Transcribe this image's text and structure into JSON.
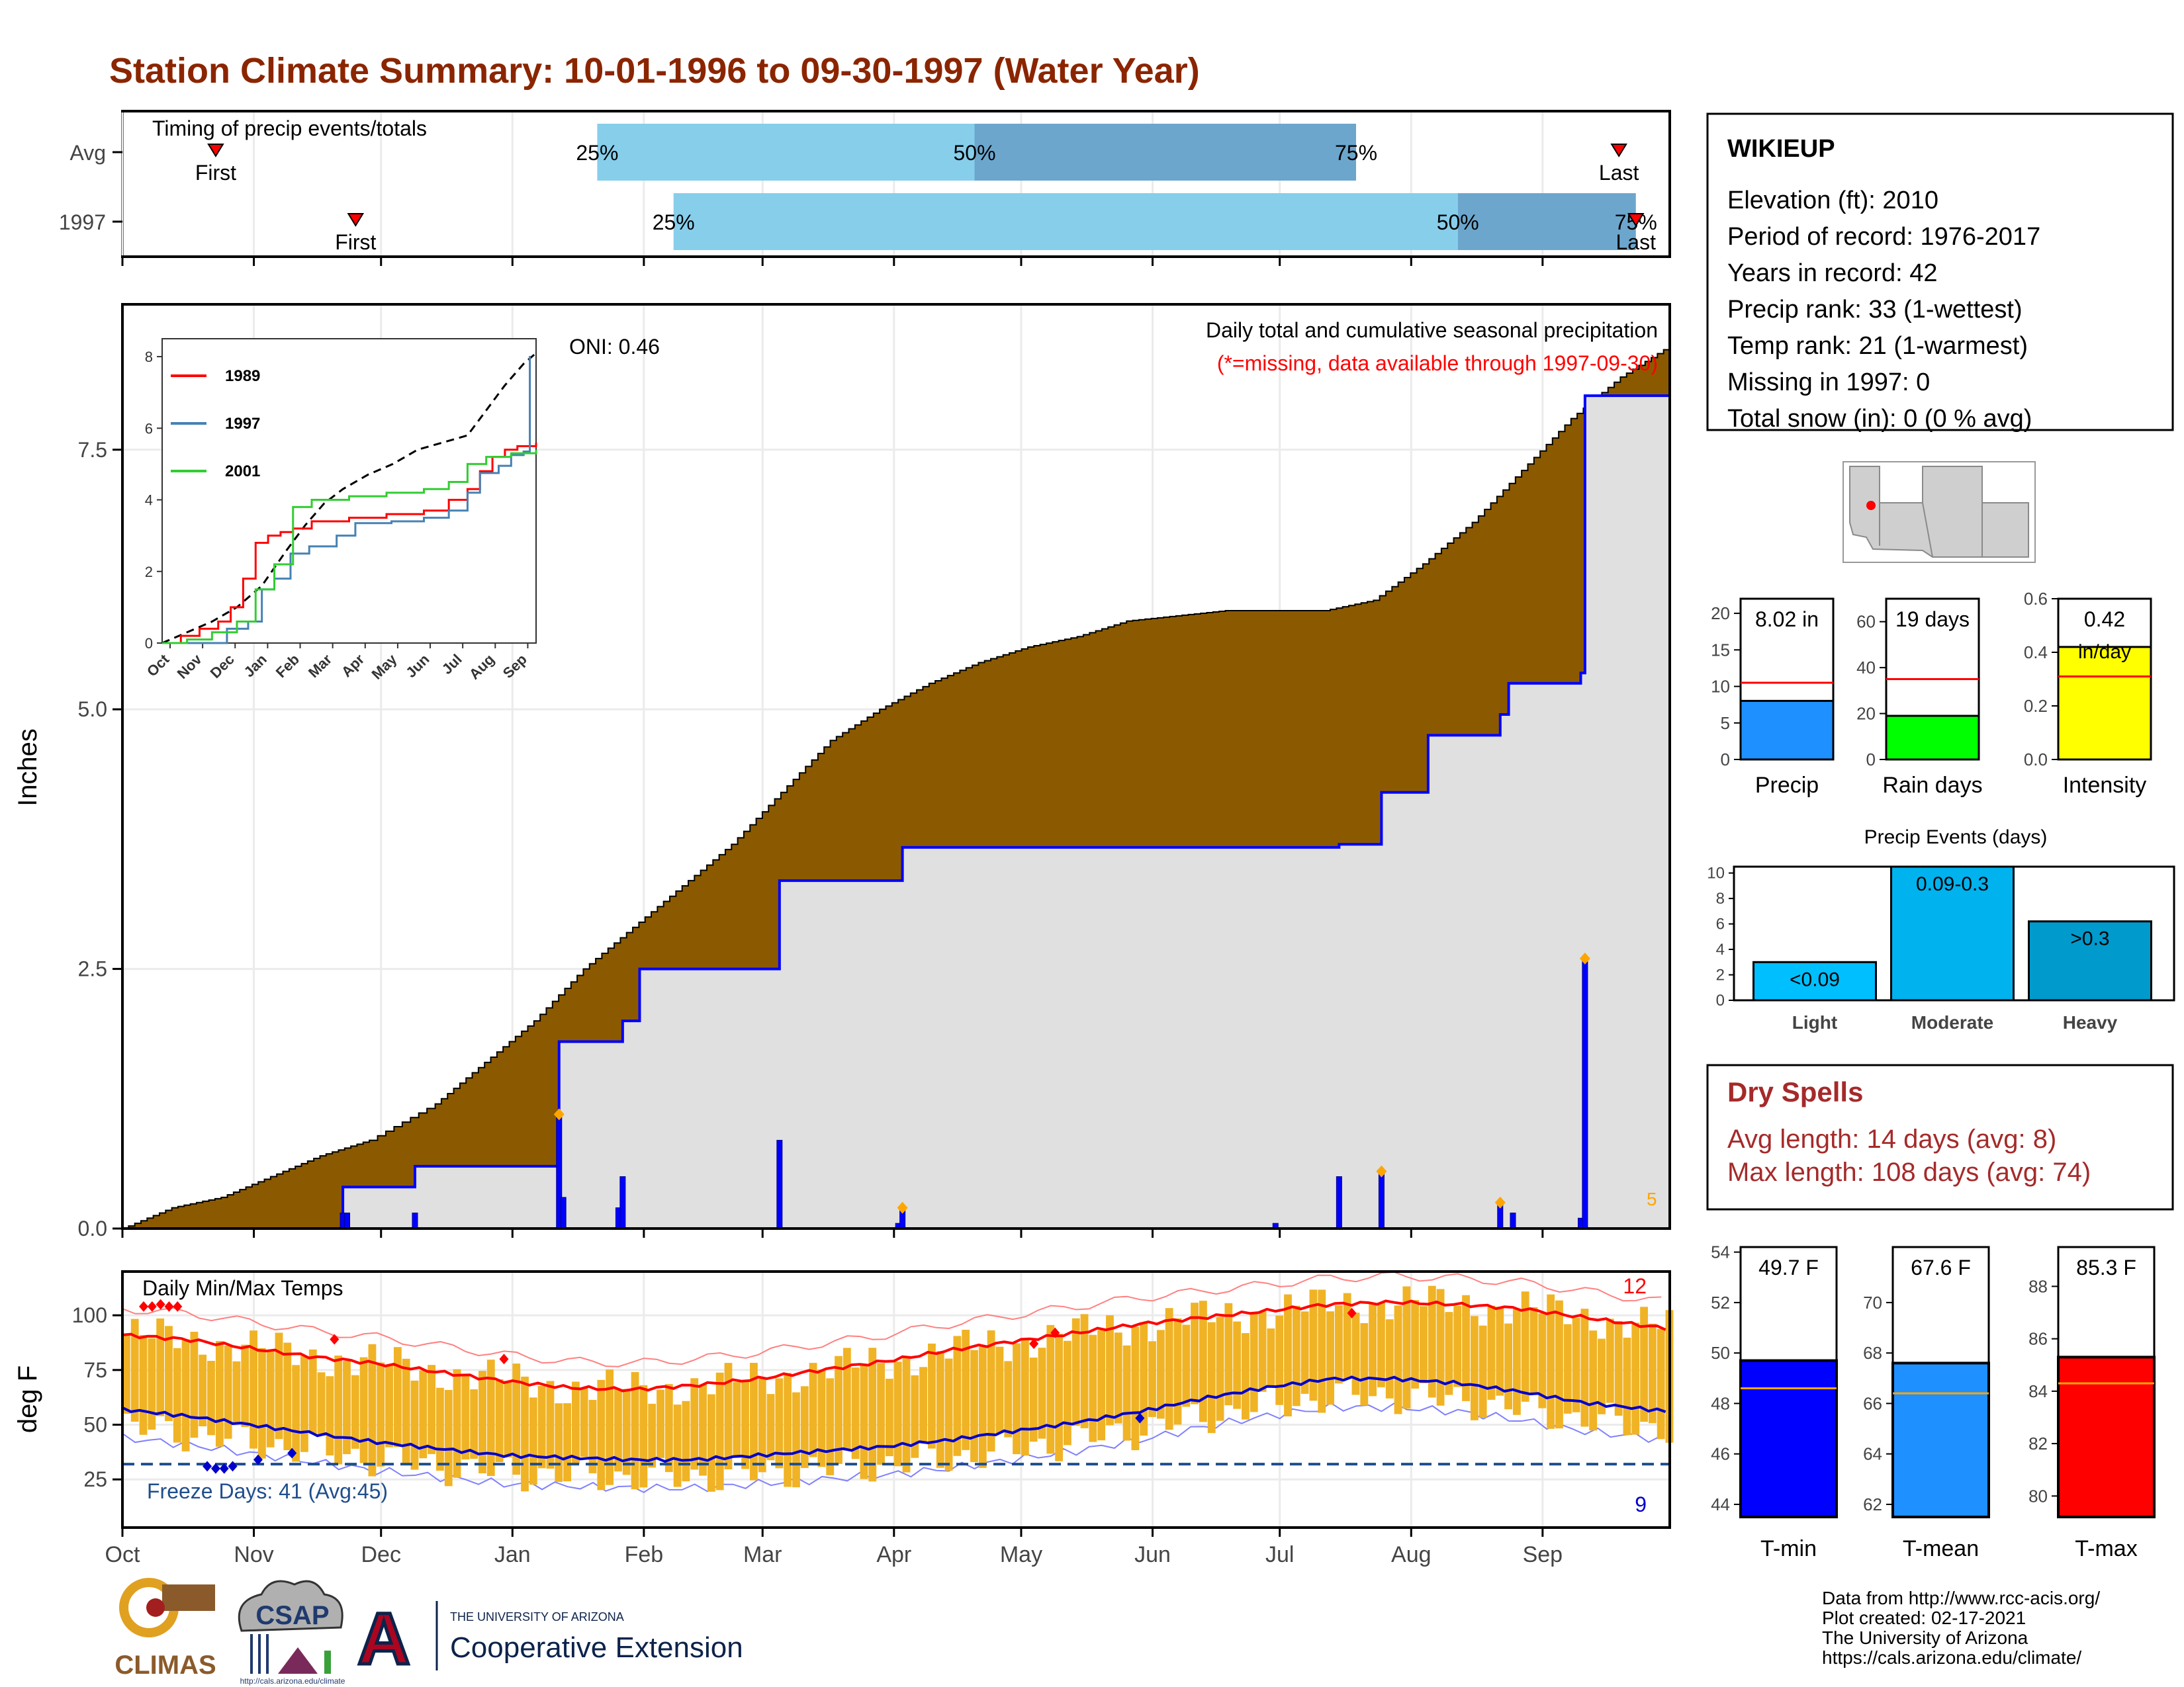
{
  "title": "Station Climate Summary: 10-01-1996 to 09-30-1997 (Water Year)",
  "months": [
    "Oct",
    "Nov",
    "Dec",
    "Jan",
    "Feb",
    "Mar",
    "Apr",
    "May",
    "Jun",
    "Jul",
    "Aug",
    "Sep"
  ],
  "colors": {
    "title": "#8b2500",
    "brown": "#8b5a00",
    "gray_area": "#e0e0e0",
    "blue": "#0000ff",
    "light_blue": "#87ceeb",
    "mid_blue": "#6ca6cd",
    "temp_band": "#f0b325",
    "red": "#ff0000",
    "orange": "#ffa500",
    "dry_red": "#a52a2a"
  },
  "timing": {
    "label": "Timing of precip events/totals",
    "rows": [
      {
        "name": "Avg",
        "first_day": 22,
        "p25_day": 112,
        "p50_day": 201,
        "p75_day": 291,
        "last_day": 353,
        "first_label": "First",
        "last_label": "Last",
        "p25_label": "25%",
        "p50_label": "50%",
        "p75_label": "75%"
      },
      {
        "name": "1997",
        "first_day": 55,
        "p25_day": 130,
        "p50_day": 315,
        "p75_day": 357,
        "last_day": 357,
        "first_label": "First",
        "last_label": "Last",
        "p25_label": "25%",
        "p50_label": "50%",
        "p75_label": "75%"
      }
    ]
  },
  "chart_data": [
    {
      "type": "area",
      "id": "main",
      "title": "Daily total and cumulative seasonal precipitation",
      "subtitle": "(*=missing, data available through 1997-09-30)",
      "oni_label": "ONI: 0.46",
      "ylabel": "Inches",
      "ylim": [
        0,
        8.9
      ],
      "yticks": [
        0,
        2.5,
        5.0,
        7.5
      ],
      "ytick_labels": [
        "0.0",
        "2.5",
        "5.0",
        "7.5"
      ],
      "corner_label": "5",
      "avg_cumulative": [
        [
          0,
          0.0
        ],
        [
          15,
          0.2
        ],
        [
          30,
          0.3
        ],
        [
          45,
          0.5
        ],
        [
          60,
          0.7
        ],
        [
          75,
          0.85
        ],
        [
          95,
          1.2
        ],
        [
          110,
          1.6
        ],
        [
          125,
          2.0
        ],
        [
          140,
          2.5
        ],
        [
          155,
          2.9
        ],
        [
          170,
          3.3
        ],
        [
          185,
          3.7
        ],
        [
          200,
          4.2
        ],
        [
          215,
          4.7
        ],
        [
          230,
          5.0
        ],
        [
          245,
          5.25
        ],
        [
          260,
          5.45
        ],
        [
          275,
          5.6
        ],
        [
          290,
          5.7
        ],
        [
          305,
          5.85
        ],
        [
          320,
          5.9
        ],
        [
          335,
          5.95
        ],
        [
          350,
          5.95
        ],
        [
          365,
          5.95
        ],
        [
          380,
          6.05
        ],
        [
          395,
          6.4
        ],
        [
          410,
          6.8
        ],
        [
          425,
          7.3
        ],
        [
          440,
          7.8
        ],
        [
          455,
          8.2
        ],
        [
          470,
          8.5
        ]
      ],
      "cumulative_1997": [
        [
          0,
          0.0
        ],
        [
          52,
          0.0
        ],
        [
          52,
          0.4
        ],
        [
          69,
          0.4
        ],
        [
          69,
          0.6
        ],
        [
          103,
          0.6
        ],
        [
          103,
          1.8
        ],
        [
          118,
          1.8
        ],
        [
          118,
          2.0
        ],
        [
          122,
          2.0
        ],
        [
          122,
          2.5
        ],
        [
          155,
          2.5
        ],
        [
          155,
          3.35
        ],
        [
          184,
          3.35
        ],
        [
          184,
          3.67
        ],
        [
          287,
          3.67
        ],
        [
          287,
          3.7
        ],
        [
          297,
          3.7
        ],
        [
          297,
          4.2
        ],
        [
          308,
          4.2
        ],
        [
          308,
          4.75
        ],
        [
          325,
          4.75
        ],
        [
          325,
          4.95
        ],
        [
          327,
          4.95
        ],
        [
          327,
          5.25
        ],
        [
          344,
          5.25
        ],
        [
          344,
          5.35
        ],
        [
          345,
          5.35
        ],
        [
          345,
          8.02
        ],
        [
          365,
          8.02
        ]
      ],
      "daily_bars": [
        [
          52,
          0.15
        ],
        [
          53,
          0.15
        ],
        [
          69,
          0.15
        ],
        [
          103,
          1.1
        ],
        [
          104,
          0.3
        ],
        [
          117,
          0.2
        ],
        [
          118,
          0.5
        ],
        [
          155,
          0.85
        ],
        [
          183,
          0.05
        ],
        [
          184,
          0.2
        ],
        [
          272,
          0.05
        ],
        [
          287,
          0.5
        ],
        [
          297,
          0.55
        ],
        [
          325,
          0.25
        ],
        [
          328,
          0.15
        ],
        [
          344,
          0.1
        ],
        [
          345,
          2.6
        ]
      ],
      "markers": [
        [
          103,
          1.1
        ],
        [
          184,
          0.2
        ],
        [
          297,
          0.55
        ],
        [
          325,
          0.25
        ],
        [
          345,
          2.6
        ]
      ]
    },
    {
      "type": "line",
      "id": "inset",
      "series": [
        {
          "name": "1989",
          "color": "#ff0000",
          "points": [
            [
              0,
              0
            ],
            [
              15,
              0.2
            ],
            [
              30,
              0.4
            ],
            [
              45,
              0.6
            ],
            [
              55,
              1.0
            ],
            [
              65,
              1.8
            ],
            [
              75,
              2.8
            ],
            [
              85,
              3.0
            ],
            [
              95,
              3.1
            ],
            [
              105,
              3.2
            ],
            [
              120,
              3.4
            ],
            [
              150,
              3.5
            ],
            [
              180,
              3.6
            ],
            [
              210,
              3.7
            ],
            [
              230,
              4.0
            ],
            [
              245,
              4.3
            ],
            [
              255,
              4.8
            ],
            [
              265,
              5.2
            ],
            [
              275,
              5.4
            ],
            [
              285,
              5.5
            ],
            [
              300,
              5.6
            ]
          ]
        },
        {
          "name": "1997",
          "color": "#4682b4",
          "points": [
            [
              0,
              0
            ],
            [
              52,
              0.4
            ],
            [
              69,
              0.6
            ],
            [
              80,
              1.5
            ],
            [
              90,
              1.8
            ],
            [
              103,
              2.5
            ],
            [
              118,
              2.7
            ],
            [
              140,
              3.0
            ],
            [
              155,
              3.35
            ],
            [
              184,
              3.4
            ],
            [
              210,
              3.5
            ],
            [
              230,
              3.7
            ],
            [
              245,
              4.2
            ],
            [
              255,
              4.75
            ],
            [
              270,
              4.95
            ],
            [
              280,
              5.25
            ],
            [
              290,
              5.35
            ],
            [
              295,
              8.02
            ]
          ]
        },
        {
          "name": "2001",
          "color": "#32cd32",
          "points": [
            [
              0,
              0
            ],
            [
              20,
              0.1
            ],
            [
              40,
              0.3
            ],
            [
              60,
              0.6
            ],
            [
              75,
              1.5
            ],
            [
              90,
              2.2
            ],
            [
              105,
              3.8
            ],
            [
              120,
              4.0
            ],
            [
              150,
              4.1
            ],
            [
              180,
              4.2
            ],
            [
              210,
              4.3
            ],
            [
              230,
              4.5
            ],
            [
              245,
              5.0
            ],
            [
              260,
              5.2
            ],
            [
              280,
              5.3
            ],
            [
              300,
              5.4
            ]
          ]
        }
      ],
      "avg_series": [
        [
          0,
          0
        ],
        [
          20,
          0.3
        ],
        [
          40,
          0.6
        ],
        [
          60,
          1.0
        ],
        [
          80,
          1.6
        ],
        [
          100,
          2.6
        ],
        [
          115,
          3.3
        ],
        [
          130,
          3.9
        ],
        [
          145,
          4.3
        ],
        [
          165,
          4.7
        ],
        [
          185,
          5.0
        ],
        [
          205,
          5.4
        ],
        [
          225,
          5.6
        ],
        [
          245,
          5.8
        ],
        [
          260,
          6.5
        ],
        [
          275,
          7.2
        ],
        [
          290,
          7.8
        ],
        [
          300,
          8.1
        ]
      ],
      "yticks": [
        0,
        2,
        4,
        6,
        8
      ],
      "months": [
        "Oct",
        "Nov",
        "Dec",
        "Jan",
        "Feb",
        "Mar",
        "Apr",
        "May",
        "Jun",
        "Jul",
        "Aug",
        "Sep"
      ]
    },
    {
      "type": "line",
      "id": "temps",
      "title": "Daily Min/Max Temps",
      "ylabel": "deg F",
      "yticks": [
        25,
        50,
        75,
        100
      ],
      "freeze_label": "Freeze Days: 41 (Avg:45)",
      "count_hot": "12",
      "count_cold": "9",
      "avg_max": [
        [
          0,
          91
        ],
        [
          15,
          89
        ],
        [
          30,
          85
        ],
        [
          45,
          81
        ],
        [
          60,
          78
        ],
        [
          75,
          74
        ],
        [
          90,
          70
        ],
        [
          105,
          67
        ],
        [
          120,
          66
        ],
        [
          135,
          68
        ],
        [
          150,
          71
        ],
        [
          165,
          75
        ],
        [
          180,
          79
        ],
        [
          195,
          84
        ],
        [
          210,
          88
        ],
        [
          225,
          92
        ],
        [
          240,
          96
        ],
        [
          255,
          99
        ],
        [
          270,
          102
        ],
        [
          285,
          105
        ],
        [
          300,
          106
        ],
        [
          315,
          105
        ],
        [
          330,
          103
        ],
        [
          345,
          99
        ],
        [
          360,
          95
        ],
        [
          365,
          94
        ]
      ],
      "avg_min": [
        [
          0,
          57
        ],
        [
          15,
          54
        ],
        [
          30,
          50
        ],
        [
          45,
          46
        ],
        [
          60,
          42
        ],
        [
          75,
          39
        ],
        [
          90,
          36
        ],
        [
          105,
          35
        ],
        [
          120,
          34
        ],
        [
          135,
          34
        ],
        [
          150,
          36
        ],
        [
          165,
          38
        ],
        [
          180,
          40
        ],
        [
          195,
          43
        ],
        [
          210,
          47
        ],
        [
          225,
          51
        ],
        [
          240,
          56
        ],
        [
          255,
          62
        ],
        [
          270,
          67
        ],
        [
          285,
          71
        ],
        [
          300,
          71
        ],
        [
          315,
          69
        ],
        [
          330,
          65
        ],
        [
          345,
          60
        ],
        [
          360,
          57
        ],
        [
          365,
          56
        ]
      ]
    },
    {
      "type": "bar",
      "id": "precip_stats",
      "panels": [
        {
          "category": "Precip",
          "value": 8.02,
          "label": "8.02 in",
          "avg": 10.5,
          "ylim": [
            0,
            22
          ],
          "yticks": [
            0,
            5,
            10,
            15,
            20
          ],
          "color": "#1e90ff"
        },
        {
          "category": "Rain days",
          "value": 19,
          "label": "19 days",
          "avg": 35,
          "ylim": [
            0,
            70
          ],
          "yticks": [
            0,
            20,
            40,
            60
          ],
          "color": "#00ff00"
        },
        {
          "category": "Intensity",
          "value": 0.42,
          "label": "0.42",
          "label2": "in/day",
          "avg": 0.31,
          "ylim": [
            0,
            0.6
          ],
          "yticks": [
            0.0,
            0.2,
            0.4,
            0.6
          ],
          "ytick_labels": [
            "0.0",
            "0.2",
            "0.4",
            "0.6"
          ],
          "color": "#ffff00"
        }
      ]
    },
    {
      "type": "bar",
      "id": "events",
      "title": "Precip Events (days)",
      "categories": [
        "Light",
        "Moderate",
        "Heavy"
      ],
      "values": [
        3,
        10.5,
        6.2
      ],
      "bar_labels": [
        "<0.09",
        "0.09-0.3",
        ">0.3"
      ],
      "colors": [
        "#00bfff",
        "#00b2ee",
        "#009acd"
      ],
      "ylim": [
        0,
        10.5
      ],
      "yticks": [
        0,
        2,
        4,
        6,
        8,
        10
      ]
    },
    {
      "type": "bar",
      "id": "temp_stats",
      "panels": [
        {
          "category": "T-min",
          "value": 49.7,
          "label": "49.7 F",
          "avg": 48.6,
          "ylim": [
            43.5,
            54.2
          ],
          "yticks": [
            44,
            46,
            48,
            50,
            52,
            54
          ],
          "color": "#0000ff"
        },
        {
          "category": "T-mean",
          "value": 67.6,
          "label": "67.6 F",
          "avg": 66.4,
          "ylim": [
            61.5,
            72.2
          ],
          "yticks": [
            62,
            64,
            66,
            68,
            70
          ],
          "color": "#1e90ff"
        },
        {
          "category": "T-max",
          "value": 85.3,
          "label": "85.3 F",
          "avg": 84.3,
          "ylim": [
            79.2,
            89.5
          ],
          "yticks": [
            80,
            82,
            84,
            86,
            88
          ],
          "color": "#ff0000"
        }
      ]
    }
  ],
  "station": {
    "name": "WIKIEUP",
    "lines": [
      "Elevation (ft): 2010",
      "Period of record: 1976-2017",
      "Years in record: 42",
      "Precip rank: 33 (1-wettest)",
      "Temp rank: 21 (1-warmest)",
      "Missing in 1997: 0",
      "Total snow (in): 0 (0 % avg)"
    ]
  },
  "dry_spells": {
    "title": "Dry Spells",
    "avg": "Avg length: 14 days (avg: 8)",
    "max": "Max length: 108 days (avg: 74)"
  },
  "credits": [
    "Data from http://www.rcc-acis.org/",
    "Plot created: 02-17-2021",
    "The University of Arizona",
    "https://cals.arizona.edu/climate/"
  ],
  "logos": {
    "climas": "CLIMAS",
    "csap": "CSAP",
    "csap_url": "http://cals.arizona.edu/climate",
    "ua_letter": "A",
    "ua_line1": "THE UNIVERSITY OF ARIZONA",
    "ua_line2": "Cooperative Extension"
  }
}
